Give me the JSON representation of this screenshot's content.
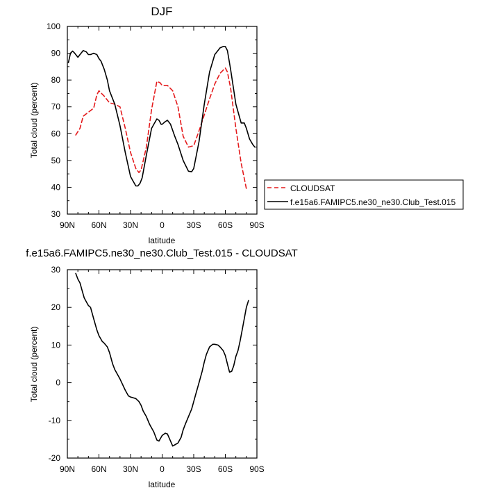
{
  "chart_data": [
    {
      "type": "line",
      "title": "DJF",
      "xlabel": "latitude",
      "ylabel": "Total cloud (percent)",
      "xlim": [
        90,
        -90
      ],
      "ylim": [
        30,
        100
      ],
      "x_ticks": [
        90,
        60,
        30,
        0,
        -30,
        -60,
        -90
      ],
      "x_tick_labels": [
        "90N",
        "60N",
        "30N",
        "0",
        "30S",
        "60S",
        "90S"
      ],
      "y_ticks": [
        30,
        40,
        50,
        60,
        70,
        80,
        90,
        100
      ],
      "y_tick_labels": [
        "30",
        "40",
        "50",
        "60",
        "70",
        "80",
        "90",
        "100"
      ],
      "legend": "outside-right",
      "series": [
        {
          "name": "CLOUDSAT",
          "color": "#e41a1c",
          "dash": "dashed",
          "x": [
            82,
            78,
            75,
            70,
            65,
            62,
            60,
            55,
            50,
            45,
            40,
            35,
            30,
            25,
            22,
            20,
            15,
            10,
            5,
            2,
            0,
            -5,
            -10,
            -15,
            -20,
            -25,
            -30,
            -35,
            -40,
            -45,
            -50,
            -55,
            -60,
            -62,
            -65,
            -70,
            -75,
            -80
          ],
          "y": [
            59.5,
            62,
            66.5,
            68,
            69.5,
            74.5,
            76,
            74,
            71.5,
            71,
            70,
            62,
            53,
            47,
            45.5,
            46.5,
            55,
            69,
            79.5,
            79,
            78,
            78,
            76,
            70,
            59,
            55,
            55.5,
            61,
            67,
            73,
            78.5,
            82.5,
            84.5,
            83,
            77,
            62,
            49,
            39.5
          ]
        },
        {
          "name": "f.e15a6.FAMIPC5.ne30_ne30.Club_Test.015",
          "color": "#000000",
          "dash": "solid",
          "x": [
            89,
            87,
            85,
            83,
            80,
            78,
            75,
            72,
            70,
            68,
            65,
            62,
            60,
            58,
            55,
            52,
            50,
            45,
            40,
            35,
            30,
            25,
            23,
            21,
            19,
            15,
            10,
            5,
            3,
            1,
            0,
            -3,
            -5,
            -8,
            -12,
            -15,
            -20,
            -25,
            -28,
            -30,
            -35,
            -40,
            -45,
            -50,
            -55,
            -58,
            -60,
            -62,
            -65,
            -70,
            -75,
            -78,
            -80,
            -83,
            -86,
            -88
          ],
          "y": [
            86.5,
            90,
            90.8,
            90,
            88.5,
            89.5,
            91,
            90.5,
            89.5,
            89.5,
            90,
            89.5,
            88,
            87,
            84,
            80,
            76,
            71,
            63,
            53,
            44,
            40.5,
            40.5,
            41.5,
            43.5,
            52,
            62,
            65.5,
            65,
            63.5,
            63.5,
            64.5,
            65,
            63.5,
            59,
            56,
            50,
            46,
            45.8,
            47,
            57,
            71,
            83,
            89.5,
            92,
            92.5,
            92.5,
            91,
            84,
            71,
            64,
            64,
            62,
            58,
            56,
            55
          ]
        }
      ]
    },
    {
      "type": "line",
      "title": "f.e15a6.FAMIPC5.ne30_ne30.Club_Test.015 - CLOUDSAT",
      "xlabel": "latitude",
      "ylabel": "Total cloud (percent)",
      "xlim": [
        90,
        -90
      ],
      "ylim": [
        -20,
        30
      ],
      "x_ticks": [
        90,
        60,
        30,
        0,
        -30,
        -60,
        -90
      ],
      "x_tick_labels": [
        "90N",
        "60N",
        "30N",
        "0",
        "30S",
        "60S",
        "90S"
      ],
      "y_ticks": [
        -20,
        -10,
        0,
        10,
        20,
        30
      ],
      "y_tick_labels": [
        "-20",
        "-10",
        "0",
        "10",
        "20",
        "30"
      ],
      "grid": false,
      "series": [
        {
          "color": "#000000",
          "dash": "solid",
          "x": [
            82,
            80,
            78,
            76,
            74,
            72,
            70,
            68,
            65,
            62,
            60,
            57,
            55,
            52,
            50,
            47,
            45,
            42,
            40,
            35,
            32,
            30,
            25,
            22,
            20,
            18,
            15,
            12,
            10,
            8,
            5,
            3,
            0,
            -3,
            -5,
            -8,
            -10,
            -12,
            -15,
            -18,
            -20,
            -22,
            -25,
            -28,
            -30,
            -32,
            -35,
            -38,
            -40,
            -42,
            -45,
            -48,
            -50,
            -53,
            -55,
            -58,
            -60,
            -62,
            -64,
            -66,
            -68,
            -70,
            -72,
            -74,
            -76,
            -78,
            -80,
            -82
          ],
          "y": [
            29,
            27.5,
            26.5,
            24.5,
            22.5,
            21.5,
            20.5,
            20,
            17,
            14,
            12.5,
            11,
            10.5,
            9.5,
            8,
            5,
            3.5,
            2,
            1,
            -2,
            -3.5,
            -3.8,
            -4.2,
            -5,
            -6,
            -7.5,
            -9,
            -11,
            -12,
            -13,
            -15.2,
            -15.5,
            -14,
            -13.4,
            -13.6,
            -15.5,
            -16.8,
            -16.5,
            -16,
            -14.5,
            -12.5,
            -11,
            -9,
            -7,
            -5,
            -3,
            0,
            3,
            5.5,
            7.5,
            9.5,
            10.2,
            10.2,
            10,
            9.5,
            8.5,
            7.2,
            5,
            2.8,
            3,
            4.5,
            7,
            8.5,
            11,
            14,
            17,
            20,
            21.8
          ]
        }
      ]
    }
  ],
  "legend_entries": [
    {
      "label": "CLOUDSAT",
      "color": "#e41a1c",
      "dash": "dashed"
    },
    {
      "label": "f.e15a6.FAMIPC5.ne30_ne30.Club_Test.015",
      "color": "#000000",
      "dash": "solid"
    }
  ]
}
